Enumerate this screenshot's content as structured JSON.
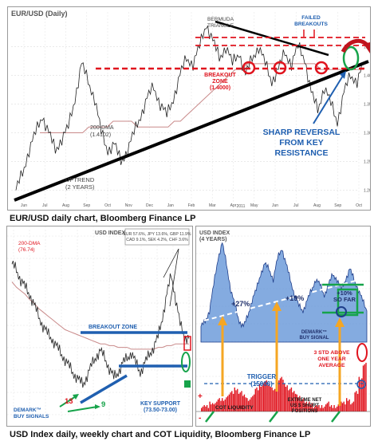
{
  "captions": {
    "top": "EUR/USD daily chart, Bloomberg Finance LP",
    "bottom": "USD Index daily, weekly chart and COT Liquidity, Bloomberg Finance LP"
  },
  "colors": {
    "annotation_red": "#e0141e",
    "annotation_blue": "#1f5fb0",
    "green": "#16a34a",
    "orange": "#f5a623",
    "area_blue": "#5b8fd6"
  },
  "chart_data": [
    {
      "id": "eurusd_daily",
      "type": "line",
      "title": "EUR/USD (Daily)",
      "y_ticks": [
        "1.4500",
        "1.4000",
        "1.3500",
        "1.3000",
        "1.2500",
        "1.2000"
      ],
      "x_ticks": [
        "Jun",
        "Jul",
        "Aug",
        "Sep",
        "Oct",
        "Nov",
        "Dec",
        "Jan",
        "Feb",
        "Mar",
        "Apr",
        "May",
        "Jun",
        "Jul",
        "Aug",
        "Sep",
        "Oct"
      ],
      "year_label": "2011",
      "ylim": [
        1.18,
        1.51
      ],
      "price_series": [
        1.2,
        1.23,
        1.27,
        1.3,
        1.33,
        1.3,
        1.27,
        1.29,
        1.31,
        1.36,
        1.42,
        1.39,
        1.36,
        1.3,
        1.27,
        1.28,
        1.25,
        1.27,
        1.3,
        1.33,
        1.36,
        1.38,
        1.35,
        1.33,
        1.36,
        1.4,
        1.43,
        1.42,
        1.45,
        1.49,
        1.46,
        1.43,
        1.45,
        1.42,
        1.44,
        1.4,
        1.43,
        1.45,
        1.42,
        1.39,
        1.41,
        1.44,
        1.42,
        1.45,
        1.43,
        1.37,
        1.34,
        1.38,
        1.35,
        1.32,
        1.37,
        1.4,
        1.39,
        1.42
      ],
      "ma_series": [
        1.3,
        1.3,
        1.3,
        1.3,
        1.3,
        1.3,
        1.3,
        1.3,
        1.31,
        1.31,
        1.31,
        1.31,
        1.32,
        1.32,
        1.32,
        1.32,
        1.31,
        1.31,
        1.31,
        1.31,
        1.31,
        1.31,
        1.32,
        1.32,
        1.33,
        1.34,
        1.35,
        1.36,
        1.37,
        1.38,
        1.39,
        1.4,
        1.41,
        1.41,
        1.42,
        1.42,
        1.42,
        1.42,
        1.42,
        1.42,
        1.42,
        1.42,
        1.42,
        1.42,
        1.42,
        1.42,
        1.41,
        1.41,
        1.41,
        1.41,
        1.41,
        1.41,
        1.41,
        1.41
      ],
      "annotations": {
        "bermuda": "BERMUDA\nTRIANGLE",
        "failed": "FAILED\nBREAKOUTS",
        "breakout": "BREAKOUT\nZONE\n(1.4000)",
        "dma": "200-DMA\n(1.4102)",
        "uptrend": "UPTREND\n(2 YEARS)",
        "reversal": "SHARP REVERSAL\nFROM KEY\nRESISTANCE"
      },
      "levels": {
        "breakout": 1.4,
        "failed_upper": 1.455,
        "failed_lower": 1.44
      }
    },
    {
      "id": "usd_index_daily",
      "type": "line",
      "title": "USD INDEX",
      "weights": "EUR 57.6%, JPY 13.6%, GBP 11.9%\nCAD 9.1%, SEK 4.2%, CHF 3.6%",
      "ylim": [
        72,
        82
      ],
      "price_series": [
        80.5,
        80.2,
        79.6,
        79.2,
        78.8,
        78.2,
        77.6,
        77.0,
        76.6,
        76.3,
        75.9,
        75.5,
        75.1,
        74.7,
        74.3,
        74.0,
        73.7,
        74.2,
        74.8,
        75.3,
        75.6,
        75.2,
        74.6,
        74.1,
        74.4,
        74.9,
        75.2,
        75.5,
        74.9,
        74.4,
        74.9,
        75.4,
        75.8,
        76.4,
        77.5,
        78.8,
        79.9,
        78.5,
        77.1,
        76.4,
        76.3
      ],
      "ma_series": [
        79.5,
        79.2,
        79.0,
        78.8,
        78.5,
        78.3,
        78.0,
        77.8,
        77.6,
        77.4,
        77.2,
        77.0,
        76.8,
        76.7,
        76.6,
        76.5,
        76.4,
        76.3,
        76.2,
        76.1,
        76.0,
        76.0,
        75.9,
        75.9,
        75.8,
        75.8,
        75.8,
        75.7,
        75.7,
        75.7,
        75.7,
        75.7,
        75.7,
        75.8,
        75.8,
        75.9,
        75.9,
        76.0,
        76.0,
        76.0,
        76.0
      ],
      "annotations": {
        "dma": "200-DMA\n(76.74)",
        "breakout": "BREAKOUT ZONE",
        "support": "KEY SUPPORT\n(73.50-73.00)",
        "demark": "DEMARK™\nBUY SIGNALS",
        "count_13": "13",
        "count_9": "9"
      },
      "levels": {
        "breakout": 77.0,
        "support": 74.5
      }
    },
    {
      "id": "usd_index_weekly_cot",
      "type": "area",
      "title": "USD INDEX\n(4 YEARS)",
      "ylim": [
        70,
        90
      ],
      "area_series": [
        73,
        74,
        76,
        81,
        86,
        89,
        85,
        80,
        77,
        74,
        73,
        75,
        78,
        80,
        83,
        85,
        84,
        82,
        86,
        88,
        85,
        82,
        79,
        77,
        76,
        78,
        80,
        82,
        81,
        79,
        81,
        83,
        82,
        80,
        82,
        84,
        82,
        80,
        78,
        76
      ],
      "cot_series": [
        1,
        1,
        2,
        2,
        3,
        3,
        4,
        5,
        6,
        5,
        4,
        3,
        4,
        6,
        7,
        8,
        7,
        6,
        8,
        9,
        7,
        6,
        5,
        4,
        3,
        2,
        2,
        1,
        1,
        1,
        2,
        1,
        1,
        2,
        2,
        3,
        2,
        5,
        9,
        13
      ],
      "annotations": {
        "gain_27": "+27%",
        "gain_19": "+19%",
        "gain_10": "+10%\nSO FAR",
        "demark": "DEMARK™\nBUY SIGNAL",
        "std": "3 STD ABOVE\nONE YEAR\nAVERAGE",
        "trigger": "TRIGGER\n(15000)",
        "cot": "COT LIQUIDITY",
        "extreme": "EXTREME NET\nUS $ SHORT\nPOSITIONS",
        "plus": "+",
        "minus": "-"
      }
    }
  ]
}
